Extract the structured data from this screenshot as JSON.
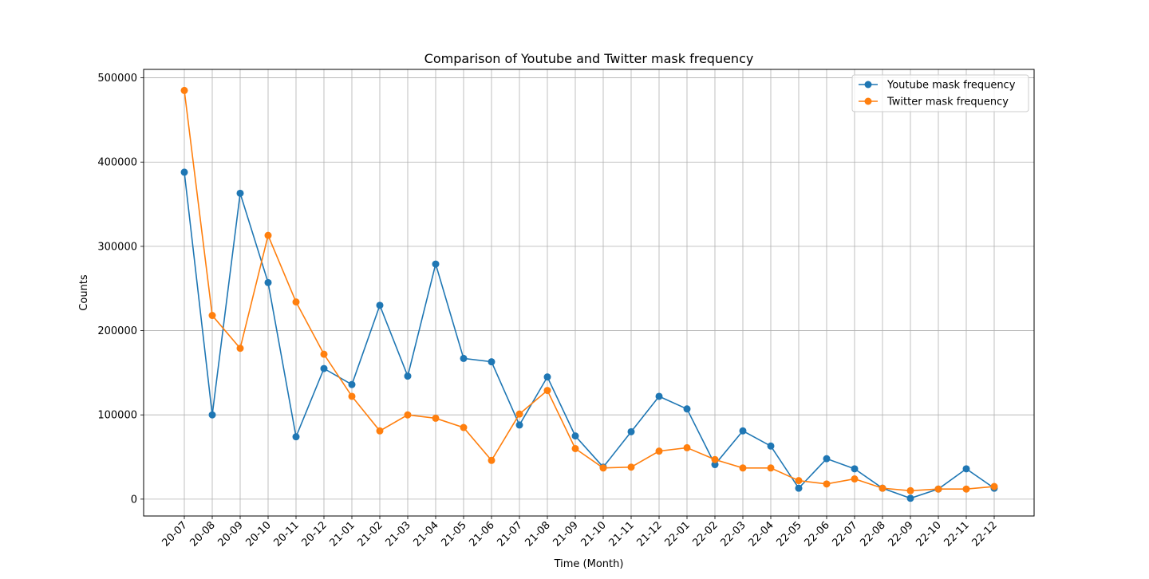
{
  "chart_data": {
    "type": "line",
    "title": "Comparison of Youtube and Twitter mask frequency",
    "xlabel": "Time (Month)",
    "ylabel": "Counts",
    "categories": [
      "20-07",
      "20-08",
      "20-09",
      "20-10",
      "20-11",
      "20-12",
      "21-01",
      "21-02",
      "21-03",
      "21-04",
      "21-05",
      "21-06",
      "21-07",
      "21-08",
      "21-09",
      "21-10",
      "21-11",
      "21-12",
      "22-01",
      "22-02",
      "22-03",
      "22-04",
      "22-05",
      "22-06",
      "22-07",
      "22-08",
      "22-09",
      "22-10",
      "22-11",
      "22-12"
    ],
    "yticks": [
      0,
      100000,
      200000,
      300000,
      400000,
      500000
    ],
    "ytick_labels": [
      "0",
      "100000",
      "200000",
      "300000",
      "400000",
      "500000"
    ],
    "ylim": [
      -20000,
      510000
    ],
    "grid": true,
    "legend_position": "top-right",
    "series": [
      {
        "name": "Youtube mask frequency",
        "color": "#1f77b4",
        "values": [
          388000,
          100000,
          363000,
          257000,
          74000,
          155000,
          136000,
          230000,
          146000,
          279000,
          167000,
          163000,
          88000,
          145000,
          75000,
          38000,
          80000,
          122000,
          107000,
          41000,
          81000,
          63000,
          13000,
          48000,
          36000,
          13000,
          1000,
          12000,
          36000,
          13000
        ]
      },
      {
        "name": "Twitter mask frequency",
        "color": "#ff7f0e",
        "values": [
          485000,
          218000,
          179000,
          313000,
          234000,
          172000,
          122000,
          81000,
          100000,
          96000,
          85000,
          46000,
          101000,
          129000,
          60000,
          37000,
          38000,
          57000,
          61000,
          47000,
          37000,
          37000,
          22000,
          18000,
          24000,
          13000,
          10000,
          12000,
          12000,
          15000
        ]
      }
    ]
  }
}
